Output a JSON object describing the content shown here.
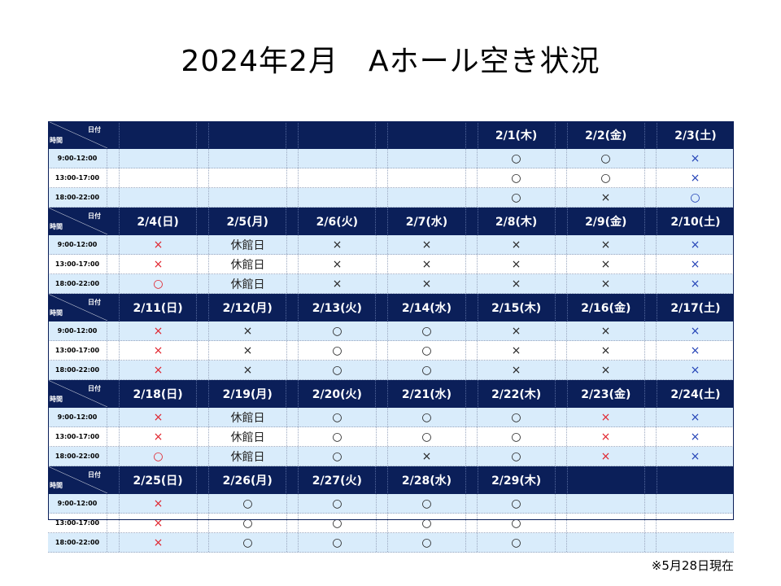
{
  "title": "2024年2月　Aホール空き状況",
  "note": "※5月28日現在",
  "header_labels": {
    "day": "日付",
    "time": "時間"
  },
  "slots": [
    "9:00-12:00",
    "13:00-17:00",
    "18:00-22:00"
  ],
  "colors": {
    "header_bg": "#0b1f59",
    "row_alt": "#d9ecfb",
    "red": "#e0202a",
    "blue": "#1f3fb5"
  },
  "weeks": [
    {
      "days": [
        "",
        "",
        "",
        "",
        "2/1(木)",
        "2/2(金)",
        "2/3(土)"
      ],
      "cells": [
        [
          "",
          "",
          "",
          "",
          "○",
          "○",
          "×"
        ],
        [
          "",
          "",
          "",
          "",
          "○",
          "○",
          "×"
        ],
        [
          "",
          "",
          "",
          "",
          "○",
          "×",
          "○"
        ]
      ]
    },
    {
      "days": [
        "2/4(日)",
        "2/5(月)",
        "2/6(火)",
        "2/7(水)",
        "2/8(木)",
        "2/9(金)",
        "2/10(土)"
      ],
      "cells": [
        [
          "×",
          "休館日",
          "×",
          "×",
          "×",
          "×",
          "×"
        ],
        [
          "×",
          "休館日",
          "×",
          "×",
          "×",
          "×",
          "×"
        ],
        [
          "○",
          "休館日",
          "×",
          "×",
          "×",
          "×",
          "×"
        ]
      ]
    },
    {
      "days": [
        "2/11(日)",
        "2/12(月)",
        "2/13(火)",
        "2/14(水)",
        "2/15(木)",
        "2/16(金)",
        "2/17(土)"
      ],
      "cells": [
        [
          "×",
          "×",
          "○",
          "○",
          "×",
          "×",
          "×"
        ],
        [
          "×",
          "×",
          "○",
          "○",
          "×",
          "×",
          "×"
        ],
        [
          "×",
          "×",
          "○",
          "○",
          "×",
          "×",
          "×"
        ]
      ]
    },
    {
      "days": [
        "2/18(日)",
        "2/19(月)",
        "2/20(火)",
        "2/21(水)",
        "2/22(木)",
        "2/23(金)",
        "2/24(土)"
      ],
      "cells": [
        [
          "×",
          "休館日",
          "○",
          "○",
          "○",
          "×",
          "×"
        ],
        [
          "×",
          "休館日",
          "○",
          "○",
          "○",
          "×",
          "×"
        ],
        [
          "○",
          "休館日",
          "○",
          "×",
          "○",
          "×",
          "×"
        ]
      ]
    },
    {
      "days": [
        "2/25(日)",
        "2/26(月)",
        "2/27(火)",
        "2/28(水)",
        "2/29(木)",
        "",
        ""
      ],
      "cells": [
        [
          "×",
          "○",
          "○",
          "○",
          "○",
          "",
          ""
        ],
        [
          "×",
          "○",
          "○",
          "○",
          "○",
          "",
          ""
        ],
        [
          "×",
          "○",
          "○",
          "○",
          "○",
          "",
          ""
        ]
      ]
    }
  ]
}
